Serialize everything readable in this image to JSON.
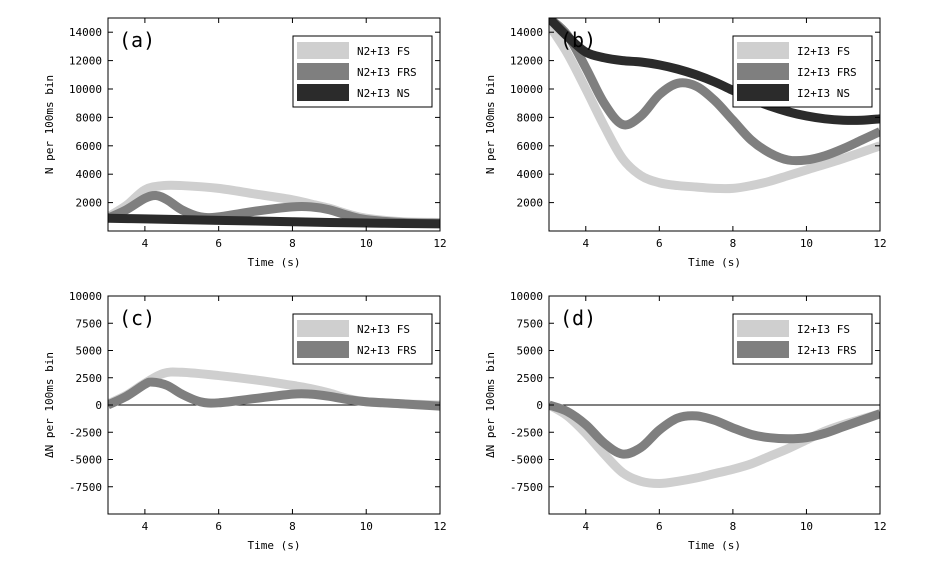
{
  "figure": {
    "panels": [
      {
        "label": "(a)",
        "xlabel": "Time (s)",
        "ylabel": "N per 100ms bin"
      },
      {
        "label": "(b)",
        "xlabel": "Time (s)",
        "ylabel": "N per 100ms bin"
      },
      {
        "label": "(c)",
        "xlabel": "Time (s)",
        "ylabel": "ΔN per 100ms bin"
      },
      {
        "label": "(d)",
        "xlabel": "Time (s)",
        "ylabel": "ΔN per 100ms bin"
      }
    ]
  },
  "chart_data": [
    {
      "type": "line",
      "panel_label": "(a)",
      "xlabel": "Time (s)",
      "ylabel": "N per 100ms bin",
      "xlim": [
        3,
        12
      ],
      "ylim": [
        0,
        15000
      ],
      "xticks": [
        4,
        6,
        8,
        10,
        12
      ],
      "yticks": [
        2000,
        4000,
        6000,
        8000,
        10000,
        12000,
        14000
      ],
      "legend_position": "top-right",
      "zero_line": false,
      "series": [
        {
          "name": "N2+I3 FS",
          "color": "#cfcfcf",
          "x": [
            3.0,
            3.5,
            4.0,
            4.5,
            5.0,
            6.0,
            7.0,
            8.0,
            8.5,
            9.0,
            9.5,
            10.0,
            11.0,
            12.0
          ],
          "y": [
            1000,
            1800,
            2900,
            3200,
            3200,
            3000,
            2600,
            2200,
            1900,
            1600,
            1200,
            900,
            650,
            600
          ]
        },
        {
          "name": "N2+I3 FRS",
          "color": "#7f7f7f",
          "x": [
            3.0,
            3.5,
            4.0,
            4.3,
            4.6,
            5.0,
            5.5,
            6.0,
            7.0,
            8.0,
            8.5,
            9.0,
            9.5,
            10.0,
            11.0,
            12.0
          ],
          "y": [
            900,
            1500,
            2300,
            2500,
            2200,
            1500,
            1000,
            1000,
            1400,
            1700,
            1700,
            1500,
            1100,
            800,
            600,
            550
          ]
        },
        {
          "name": "N2+I3 NS",
          "color": "#2b2b2b",
          "x": [
            3.0,
            4.0,
            5.0,
            6.0,
            7.0,
            8.0,
            9.0,
            10.0,
            11.0,
            12.0
          ],
          "y": [
            900,
            850,
            800,
            750,
            700,
            650,
            600,
            560,
            530,
            500
          ]
        }
      ]
    },
    {
      "type": "line",
      "panel_label": "(b)",
      "xlabel": "Time (s)",
      "ylabel": "N per 100ms bin",
      "xlim": [
        3,
        12
      ],
      "ylim": [
        0,
        15000
      ],
      "xticks": [
        4,
        6,
        8,
        10,
        12
      ],
      "yticks": [
        2000,
        4000,
        6000,
        8000,
        10000,
        12000,
        14000
      ],
      "legend_position": "top-right",
      "zero_line": false,
      "series": [
        {
          "name": "I2+I3 FS",
          "color": "#cfcfcf",
          "x": [
            3.0,
            3.5,
            4.0,
            4.5,
            5.0,
            5.5,
            6.0,
            6.5,
            7.0,
            7.5,
            8.0,
            8.5,
            9.0,
            9.5,
            10.0,
            11.0,
            12.0
          ],
          "y": [
            14500,
            12500,
            10000,
            7400,
            5100,
            3900,
            3400,
            3200,
            3100,
            3000,
            3000,
            3200,
            3500,
            3900,
            4300,
            5100,
            6000
          ]
        },
        {
          "name": "I2+I3 FRS",
          "color": "#7f7f7f",
          "x": [
            3.0,
            3.5,
            4.0,
            4.5,
            5.0,
            5.5,
            6.0,
            6.5,
            7.0,
            7.5,
            8.0,
            8.5,
            9.0,
            9.5,
            10.0,
            10.5,
            11.0,
            11.5,
            12.0
          ],
          "y": [
            15000,
            13800,
            11500,
            9000,
            7500,
            8100,
            9600,
            10400,
            10200,
            9200,
            7800,
            6400,
            5500,
            5000,
            5000,
            5300,
            5800,
            6400,
            7000
          ]
        },
        {
          "name": "I2+I3 NS",
          "color": "#2b2b2b",
          "x": [
            3.0,
            3.5,
            4.0,
            4.5,
            5.0,
            5.5,
            6.0,
            6.5,
            7.0,
            7.5,
            8.0,
            8.5,
            9.0,
            9.5,
            10.0,
            10.5,
            11.0,
            11.5,
            12.0
          ],
          "y": [
            15000,
            13700,
            12600,
            12200,
            12000,
            11900,
            11700,
            11400,
            11000,
            10500,
            9900,
            9300,
            8800,
            8400,
            8100,
            7900,
            7800,
            7800,
            7900
          ]
        }
      ]
    },
    {
      "type": "line",
      "panel_label": "(c)",
      "xlabel": "Time (s)",
      "ylabel": "ΔN per 100ms bin",
      "xlim": [
        3,
        12
      ],
      "ylim": [
        -10000,
        10000
      ],
      "xticks": [
        4,
        6,
        8,
        10,
        12
      ],
      "yticks": [
        -7500,
        -5000,
        -2500,
        0,
        2500,
        5000,
        7500,
        10000
      ],
      "legend_position": "top-right",
      "zero_line": true,
      "series": [
        {
          "name": "N2+I3 FS",
          "color": "#cfcfcf",
          "x": [
            3.0,
            3.5,
            4.0,
            4.5,
            5.0,
            6.0,
            7.0,
            8.0,
            8.5,
            9.0,
            9.5,
            10.0,
            11.0,
            12.0
          ],
          "y": [
            100,
            900,
            2000,
            2900,
            3000,
            2700,
            2300,
            1800,
            1500,
            1100,
            600,
            300,
            100,
            0
          ]
        },
        {
          "name": "N2+I3 FRS",
          "color": "#7f7f7f",
          "x": [
            3.0,
            3.5,
            4.0,
            4.2,
            4.6,
            5.0,
            5.5,
            6.0,
            7.0,
            8.0,
            8.5,
            9.0,
            9.5,
            10.0,
            11.0,
            12.0
          ],
          "y": [
            0,
            800,
            1900,
            2100,
            1800,
            1000,
            300,
            200,
            600,
            1000,
            1000,
            800,
            500,
            300,
            100,
            -100
          ]
        }
      ]
    },
    {
      "type": "line",
      "panel_label": "(d)",
      "xlabel": "Time (s)",
      "ylabel": "ΔN per 100ms bin",
      "xlim": [
        3,
        12
      ],
      "ylim": [
        -10000,
        10000
      ],
      "xticks": [
        4,
        6,
        8,
        10,
        12
      ],
      "yticks": [
        -7500,
        -5000,
        -2500,
        0,
        2500,
        5000,
        7500,
        10000
      ],
      "legend_position": "top-right",
      "zero_line": true,
      "series": [
        {
          "name": "I2+I3 FS",
          "color": "#cfcfcf",
          "x": [
            3.0,
            3.5,
            4.0,
            4.5,
            5.0,
            5.5,
            6.0,
            6.5,
            7.0,
            7.5,
            8.0,
            8.5,
            9.0,
            9.5,
            10.0,
            10.5,
            11.0,
            12.0
          ],
          "y": [
            0,
            -1000,
            -2600,
            -4500,
            -6200,
            -7000,
            -7200,
            -7000,
            -6700,
            -6300,
            -5900,
            -5400,
            -4700,
            -4000,
            -3200,
            -2400,
            -1800,
            -800
          ]
        },
        {
          "name": "I2+I3 FRS",
          "color": "#7f7f7f",
          "x": [
            3.0,
            3.5,
            4.0,
            4.5,
            5.0,
            5.5,
            6.0,
            6.5,
            7.0,
            7.5,
            8.0,
            8.5,
            9.0,
            9.5,
            10.0,
            10.5,
            11.0,
            11.5,
            12.0
          ],
          "y": [
            0,
            -600,
            -1800,
            -3500,
            -4500,
            -3900,
            -2300,
            -1200,
            -1000,
            -1400,
            -2100,
            -2700,
            -3000,
            -3100,
            -3000,
            -2600,
            -2000,
            -1400,
            -800
          ]
        }
      ]
    }
  ]
}
